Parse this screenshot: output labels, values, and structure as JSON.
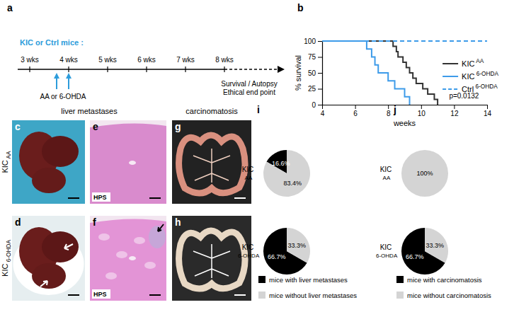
{
  "panel_letters": [
    "a",
    "b",
    "c",
    "d",
    "e",
    "f",
    "g",
    "h",
    "i",
    "j"
  ],
  "timeline": {
    "title": "KIC or Ctrl mice :",
    "ticks": [
      "3 wks",
      "4 wks",
      "5 wks",
      "6 wks",
      "7 wks",
      "8 wks"
    ],
    "treatment": "AA or 6-OHDA",
    "endpoint": [
      "Survival / Autopsy",
      "Ethical end point"
    ]
  },
  "photos": {
    "columns": [
      "liver metastases",
      "carcinomatosis"
    ],
    "rows": [
      "KIC AA",
      "KIC 6-OHDA"
    ],
    "stain": "HPS"
  },
  "chart_data": [
    {
      "type": "line",
      "xlabel": "weeks",
      "ylabel": "% survival",
      "annotation": "p=0.0132",
      "xlim": [
        4,
        14
      ],
      "xticks": [
        4,
        6,
        8,
        10,
        12,
        14
      ],
      "ylim": [
        0,
        100
      ],
      "yticks": [
        0,
        25,
        50,
        75,
        100
      ],
      "grid": false,
      "legend": "right",
      "series": [
        {
          "name": "KIC AA",
          "color": "#333333",
          "line_style": "solid",
          "x": [
            4,
            8.3,
            8.5,
            8.6,
            8.9,
            9.1,
            9.3,
            9.5,
            9.7,
            10.1,
            10.4,
            10.8,
            11
          ],
          "values": [
            100,
            91.7,
            83.3,
            75,
            66.7,
            58.3,
            50,
            41.7,
            33.3,
            25,
            16.7,
            8.3,
            0
          ]
        },
        {
          "name": "KIC 6-OHDA",
          "color": "#3d9be9",
          "line_style": "solid",
          "x": [
            4,
            6.7,
            7.0,
            7.2,
            7.4,
            8.0,
            8.4,
            9.0,
            9.3
          ],
          "values": [
            100,
            87.5,
            75,
            62.5,
            50,
            37.5,
            25,
            12.5,
            0
          ]
        },
        {
          "name": "Ctrl 6-OHDA",
          "color": "#3d9be9",
          "line_style": "dashed",
          "x": [
            4,
            14
          ],
          "values": [
            100,
            100
          ]
        }
      ]
    },
    {
      "type": "pie",
      "categories": [
        "mice with liver metastases",
        "mice without liver metastases"
      ],
      "colors": [
        "#000000",
        "#d4d4d4"
      ],
      "data_labels": true,
      "legend": "bottom",
      "series": [
        {
          "name": "KIC AA",
          "values": [
            16.6,
            83.4
          ],
          "value_labels": [
            "16.6%",
            "83.4%"
          ]
        },
        {
          "name": "KIC 6-OHDA",
          "values": [
            66.7,
            33.3
          ],
          "value_labels": [
            "66.7%",
            "33.3%"
          ]
        }
      ]
    },
    {
      "type": "pie",
      "categories": [
        "mice with carcinomatosis",
        "mice without carcinomatosis"
      ],
      "colors": [
        "#000000",
        "#d4d4d4"
      ],
      "data_labels": true,
      "legend": "bottom",
      "series": [
        {
          "name": "KIC AA",
          "values": [
            0,
            100
          ],
          "value_labels": [
            null,
            "100%"
          ]
        },
        {
          "name": "KIC 6-OHDA",
          "values": [
            66.7,
            33.3
          ],
          "value_labels": [
            "66.7%",
            "33.3%"
          ]
        }
      ]
    }
  ]
}
